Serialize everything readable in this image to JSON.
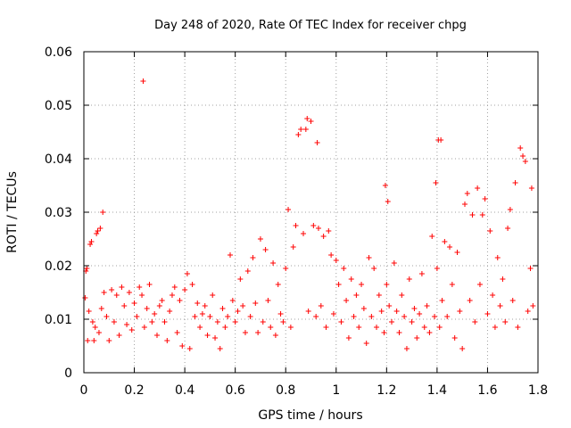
{
  "chart_data": {
    "type": "scatter",
    "title": "Day 248 of 2020, Rate Of TEC Index for receiver chpg",
    "xlabel": "GPS time / hours",
    "ylabel": "ROTI / TECUs",
    "xlim": [
      0,
      1.8
    ],
    "ylim": [
      0,
      0.06
    ],
    "xticks": [
      "0",
      "0.2",
      "0.4",
      "0.6",
      "0.8",
      "1",
      "1.2",
      "1.4",
      "1.6",
      "1.8"
    ],
    "yticks": [
      "0",
      "0.01",
      "0.02",
      "0.03",
      "0.04",
      "0.05",
      "0.06"
    ],
    "grid": true,
    "marker": "+",
    "color": "#ff0000",
    "series": [
      {
        "points": [
          [
            0.005,
            0.014
          ],
          [
            0.008,
            0.019
          ],
          [
            0.012,
            0.0195
          ],
          [
            0.015,
            0.006
          ],
          [
            0.02,
            0.0115
          ],
          [
            0.025,
            0.024
          ],
          [
            0.03,
            0.0245
          ],
          [
            0.035,
            0.0095
          ],
          [
            0.04,
            0.006
          ],
          [
            0.045,
            0.0085
          ],
          [
            0.05,
            0.026
          ],
          [
            0.055,
            0.0265
          ],
          [
            0.06,
            0.0075
          ],
          [
            0.065,
            0.027
          ],
          [
            0.07,
            0.012
          ],
          [
            0.075,
            0.03
          ],
          [
            0.08,
            0.015
          ],
          [
            0.09,
            0.0105
          ],
          [
            0.1,
            0.006
          ],
          [
            0.11,
            0.0155
          ],
          [
            0.12,
            0.0095
          ],
          [
            0.13,
            0.0145
          ],
          [
            0.14,
            0.007
          ],
          [
            0.15,
            0.016
          ],
          [
            0.16,
            0.0125
          ],
          [
            0.17,
            0.009
          ],
          [
            0.18,
            0.015
          ],
          [
            0.19,
            0.008
          ],
          [
            0.2,
            0.013
          ],
          [
            0.21,
            0.0105
          ],
          [
            0.22,
            0.016
          ],
          [
            0.23,
            0.0145
          ],
          [
            0.235,
            0.0545
          ],
          [
            0.24,
            0.0085
          ],
          [
            0.25,
            0.012
          ],
          [
            0.26,
            0.0165
          ],
          [
            0.27,
            0.0095
          ],
          [
            0.28,
            0.011
          ],
          [
            0.29,
            0.007
          ],
          [
            0.3,
            0.0125
          ],
          [
            0.31,
            0.0135
          ],
          [
            0.32,
            0.0095
          ],
          [
            0.33,
            0.006
          ],
          [
            0.34,
            0.0115
          ],
          [
            0.35,
            0.0145
          ],
          [
            0.36,
            0.016
          ],
          [
            0.37,
            0.0075
          ],
          [
            0.38,
            0.0135
          ],
          [
            0.39,
            0.005
          ],
          [
            0.4,
            0.0155
          ],
          [
            0.41,
            0.0185
          ],
          [
            0.42,
            0.0045
          ],
          [
            0.43,
            0.0165
          ],
          [
            0.44,
            0.0105
          ],
          [
            0.45,
            0.013
          ],
          [
            0.46,
            0.0085
          ],
          [
            0.47,
            0.011
          ],
          [
            0.48,
            0.0125
          ],
          [
            0.49,
            0.007
          ],
          [
            0.5,
            0.0105
          ],
          [
            0.51,
            0.0145
          ],
          [
            0.52,
            0.0065
          ],
          [
            0.53,
            0.0095
          ],
          [
            0.54,
            0.0045
          ],
          [
            0.55,
            0.012
          ],
          [
            0.56,
            0.0085
          ],
          [
            0.57,
            0.0105
          ],
          [
            0.58,
            0.022
          ],
          [
            0.59,
            0.0135
          ],
          [
            0.6,
            0.0095
          ],
          [
            0.61,
            0.0115
          ],
          [
            0.62,
            0.0175
          ],
          [
            0.63,
            0.0125
          ],
          [
            0.64,
            0.0075
          ],
          [
            0.65,
            0.019
          ],
          [
            0.66,
            0.0105
          ],
          [
            0.67,
            0.0215
          ],
          [
            0.68,
            0.013
          ],
          [
            0.69,
            0.0075
          ],
          [
            0.7,
            0.025
          ],
          [
            0.71,
            0.0095
          ],
          [
            0.72,
            0.023
          ],
          [
            0.73,
            0.0135
          ],
          [
            0.74,
            0.0085
          ],
          [
            0.75,
            0.0205
          ],
          [
            0.76,
            0.007
          ],
          [
            0.77,
            0.0165
          ],
          [
            0.78,
            0.011
          ],
          [
            0.79,
            0.0095
          ],
          [
            0.8,
            0.0195
          ],
          [
            0.81,
            0.0305
          ],
          [
            0.82,
            0.0085
          ],
          [
            0.83,
            0.0235
          ],
          [
            0.84,
            0.0275
          ],
          [
            0.85,
            0.0445
          ],
          [
            0.86,
            0.0455
          ],
          [
            0.87,
            0.026
          ],
          [
            0.88,
            0.0455
          ],
          [
            0.885,
            0.0475
          ],
          [
            0.89,
            0.0115
          ],
          [
            0.9,
            0.047
          ],
          [
            0.91,
            0.0275
          ],
          [
            0.92,
            0.0105
          ],
          [
            0.925,
            0.043
          ],
          [
            0.93,
            0.027
          ],
          [
            0.94,
            0.0125
          ],
          [
            0.95,
            0.0255
          ],
          [
            0.96,
            0.0085
          ],
          [
            0.97,
            0.0265
          ],
          [
            0.98,
            0.022
          ],
          [
            0.99,
            0.011
          ],
          [
            1.0,
            0.021
          ],
          [
            1.01,
            0.0165
          ],
          [
            1.02,
            0.0095
          ],
          [
            1.03,
            0.0195
          ],
          [
            1.04,
            0.0135
          ],
          [
            1.05,
            0.0065
          ],
          [
            1.06,
            0.0175
          ],
          [
            1.07,
            0.0105
          ],
          [
            1.08,
            0.0145
          ],
          [
            1.09,
            0.0085
          ],
          [
            1.1,
            0.0165
          ],
          [
            1.11,
            0.012
          ],
          [
            1.12,
            0.0055
          ],
          [
            1.13,
            0.0215
          ],
          [
            1.14,
            0.0105
          ],
          [
            1.15,
            0.0195
          ],
          [
            1.16,
            0.0085
          ],
          [
            1.17,
            0.0145
          ],
          [
            1.18,
            0.0115
          ],
          [
            1.19,
            0.0075
          ],
          [
            1.195,
            0.035
          ],
          [
            1.2,
            0.0165
          ],
          [
            1.205,
            0.032
          ],
          [
            1.21,
            0.0125
          ],
          [
            1.22,
            0.0095
          ],
          [
            1.23,
            0.0205
          ],
          [
            1.24,
            0.0115
          ],
          [
            1.25,
            0.0075
          ],
          [
            1.26,
            0.0145
          ],
          [
            1.27,
            0.0105
          ],
          [
            1.28,
            0.0045
          ],
          [
            1.29,
            0.0175
          ],
          [
            1.3,
            0.0095
          ],
          [
            1.31,
            0.012
          ],
          [
            1.32,
            0.0065
          ],
          [
            1.33,
            0.011
          ],
          [
            1.34,
            0.0185
          ],
          [
            1.35,
            0.0085
          ],
          [
            1.36,
            0.0125
          ],
          [
            1.37,
            0.0075
          ],
          [
            1.38,
            0.0255
          ],
          [
            1.39,
            0.0105
          ],
          [
            1.395,
            0.0355
          ],
          [
            1.4,
            0.0195
          ],
          [
            1.405,
            0.0435
          ],
          [
            1.41,
            0.0085
          ],
          [
            1.415,
            0.0435
          ],
          [
            1.42,
            0.0135
          ],
          [
            1.43,
            0.0245
          ],
          [
            1.44,
            0.0105
          ],
          [
            1.45,
            0.0235
          ],
          [
            1.46,
            0.0165
          ],
          [
            1.47,
            0.0065
          ],
          [
            1.48,
            0.0225
          ],
          [
            1.49,
            0.0115
          ],
          [
            1.5,
            0.0045
          ],
          [
            1.51,
            0.0315
          ],
          [
            1.52,
            0.0335
          ],
          [
            1.53,
            0.0135
          ],
          [
            1.54,
            0.0295
          ],
          [
            1.55,
            0.0095
          ],
          [
            1.56,
            0.0345
          ],
          [
            1.57,
            0.0165
          ],
          [
            1.58,
            0.0295
          ],
          [
            1.59,
            0.0325
          ],
          [
            1.6,
            0.011
          ],
          [
            1.61,
            0.0265
          ],
          [
            1.62,
            0.0145
          ],
          [
            1.63,
            0.0085
          ],
          [
            1.64,
            0.0215
          ],
          [
            1.65,
            0.0125
          ],
          [
            1.66,
            0.0175
          ],
          [
            1.67,
            0.0095
          ],
          [
            1.68,
            0.027
          ],
          [
            1.69,
            0.0305
          ],
          [
            1.7,
            0.0135
          ],
          [
            1.71,
            0.0355
          ],
          [
            1.72,
            0.0085
          ],
          [
            1.73,
            0.042
          ],
          [
            1.74,
            0.0405
          ],
          [
            1.75,
            0.0395
          ],
          [
            1.76,
            0.0115
          ],
          [
            1.77,
            0.0195
          ],
          [
            1.775,
            0.0345
          ],
          [
            1.78,
            0.0125
          ]
        ]
      }
    ]
  }
}
